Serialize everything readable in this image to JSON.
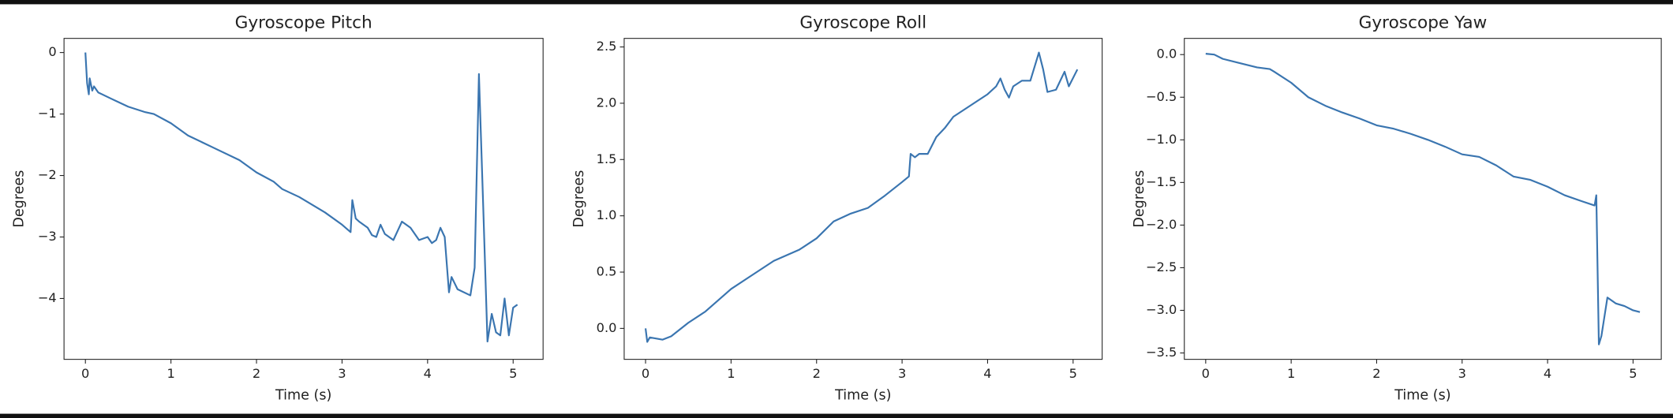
{
  "chart_data": [
    {
      "type": "line",
      "title": "Gyroscope Pitch",
      "xlabel": "Time (s)",
      "ylabel": "Degrees",
      "color": "#3a75b0",
      "x": [
        0,
        0.02,
        0.04,
        0.05,
        0.08,
        0.1,
        0.15,
        0.3,
        0.5,
        0.7,
        0.8,
        1.0,
        1.2,
        1.5,
        1.8,
        2.0,
        2.2,
        2.3,
        2.5,
        2.8,
        3.0,
        3.1,
        3.12,
        3.16,
        3.2,
        3.3,
        3.35,
        3.4,
        3.45,
        3.5,
        3.6,
        3.65,
        3.7,
        3.8,
        3.9,
        4.0,
        4.05,
        4.1,
        4.15,
        4.2,
        4.25,
        4.28,
        4.35,
        4.5,
        4.55,
        4.6,
        4.65,
        4.7,
        4.75,
        4.8,
        4.85,
        4.9,
        4.95,
        5.0,
        5.05
      ],
      "values": [
        0,
        -0.5,
        -0.68,
        -0.42,
        -0.62,
        -0.55,
        -0.65,
        -0.75,
        -0.88,
        -0.97,
        -1.0,
        -1.15,
        -1.35,
        -1.55,
        -1.75,
        -1.95,
        -2.1,
        -2.22,
        -2.35,
        -2.6,
        -2.8,
        -2.92,
        -2.4,
        -2.7,
        -2.75,
        -2.85,
        -2.97,
        -3.0,
        -2.8,
        -2.95,
        -3.05,
        -2.9,
        -2.75,
        -2.85,
        -3.05,
        -3.0,
        -3.1,
        -3.05,
        -2.85,
        -3.0,
        -3.9,
        -3.65,
        -3.85,
        -3.95,
        -3.5,
        -0.35,
        -2.5,
        -4.7,
        -4.25,
        -4.55,
        -4.6,
        -4.0,
        -4.6,
        -4.15,
        -4.1
      ],
      "xlim": [
        -0.25,
        5.35
      ],
      "ylim": [
        -4.99,
        0.23
      ],
      "xticks": [
        0,
        1,
        2,
        3,
        4,
        5
      ],
      "yticks": [
        0,
        {
          "value": -1,
          "label": "−1"
        },
        {
          "value": -2,
          "label": "−2"
        },
        {
          "value": -3,
          "label": "−3"
        },
        {
          "value": -4,
          "label": "−4"
        }
      ]
    },
    {
      "type": "line",
      "title": "Gyroscope Roll",
      "xlabel": "Time (s)",
      "ylabel": "Degrees",
      "color": "#3a75b0",
      "x": [
        0,
        0.02,
        0.05,
        0.2,
        0.3,
        0.5,
        0.7,
        1.0,
        1.2,
        1.5,
        1.8,
        2.0,
        2.2,
        2.4,
        2.6,
        2.8,
        3.0,
        3.08,
        3.1,
        3.15,
        3.2,
        3.3,
        3.4,
        3.5,
        3.6,
        3.7,
        3.8,
        3.9,
        4.0,
        4.1,
        4.15,
        4.2,
        4.25,
        4.3,
        4.4,
        4.5,
        4.6,
        4.65,
        4.7,
        4.8,
        4.9,
        4.95,
        5.05
      ],
      "values": [
        0,
        -0.12,
        -0.08,
        -0.1,
        -0.07,
        0.05,
        0.15,
        0.35,
        0.45,
        0.6,
        0.7,
        0.8,
        0.95,
        1.02,
        1.07,
        1.18,
        1.3,
        1.35,
        1.55,
        1.52,
        1.55,
        1.55,
        1.7,
        1.78,
        1.88,
        1.93,
        1.98,
        2.03,
        2.08,
        2.15,
        2.22,
        2.12,
        2.05,
        2.15,
        2.2,
        2.2,
        2.45,
        2.3,
        2.1,
        2.12,
        2.28,
        2.15,
        2.3
      ],
      "xlim": [
        -0.25,
        5.34
      ],
      "ylim": [
        -0.275,
        2.576
      ],
      "xticks": [
        0,
        1,
        2,
        3,
        4,
        5
      ],
      "yticks": [
        {
          "value": 0,
          "label": "0.0"
        },
        0.5,
        {
          "value": 1,
          "label": "1.0"
        },
        1.5,
        {
          "value": 2,
          "label": "2.0"
        },
        2.5
      ]
    },
    {
      "type": "line",
      "title": "Gyroscope Yaw",
      "xlabel": "Time (s)",
      "ylabel": "Degrees",
      "color": "#3a75b0",
      "x": [
        0,
        0.1,
        0.2,
        0.4,
        0.6,
        0.75,
        0.8,
        1.0,
        1.2,
        1.4,
        1.6,
        1.8,
        2.0,
        2.2,
        2.4,
        2.6,
        2.8,
        3.0,
        3.2,
        3.4,
        3.6,
        3.8,
        4.0,
        4.2,
        4.4,
        4.55,
        4.57,
        4.6,
        4.63,
        4.7,
        4.8,
        4.9,
        5.0,
        5.08
      ],
      "values": [
        0.01,
        0,
        -0.05,
        -0.1,
        -0.15,
        -0.17,
        -0.2,
        -0.33,
        -0.5,
        -0.6,
        -0.68,
        -0.75,
        -0.83,
        -0.87,
        -0.93,
        -1.0,
        -1.08,
        -1.17,
        -1.2,
        -1.3,
        -1.43,
        -1.47,
        -1.55,
        -1.65,
        -1.72,
        -1.77,
        -1.65,
        -3.4,
        -3.3,
        -2.85,
        -2.92,
        -2.95,
        -3.0,
        -3.02
      ],
      "xlim": [
        -0.25,
        5.33
      ],
      "ylim": [
        -3.575,
        0.19
      ],
      "xticks": [
        0,
        1,
        2,
        3,
        4,
        5
      ],
      "yticks": [
        {
          "value": 0,
          "label": "0.0"
        },
        {
          "value": -0.5,
          "label": "−0.5"
        },
        {
          "value": -1,
          "label": "−1.0"
        },
        {
          "value": -1.5,
          "label": "−1.5"
        },
        {
          "value": -2,
          "label": "−2.0"
        },
        {
          "value": -2.5,
          "label": "−2.5"
        },
        {
          "value": -3,
          "label": "−3.0"
        },
        {
          "value": -3.5,
          "label": "−3.5"
        }
      ]
    }
  ]
}
